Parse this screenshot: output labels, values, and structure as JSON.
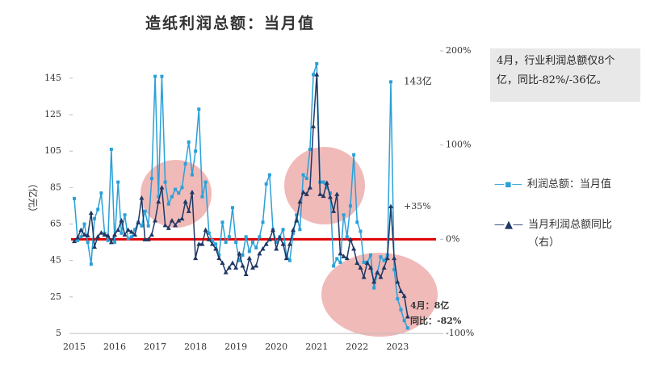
{
  "chart_data": {
    "type": "line",
    "title": "造纸利润总额：当月值",
    "y_label": "（亿元）",
    "categories": [
      "2015",
      null,
      null,
      null,
      null,
      null,
      null,
      null,
      null,
      null,
      null,
      null,
      "2016",
      null,
      null,
      null,
      null,
      null,
      null,
      null,
      null,
      null,
      null,
      null,
      "2017",
      null,
      null,
      null,
      null,
      null,
      null,
      null,
      null,
      null,
      null,
      null,
      "2018",
      null,
      null,
      null,
      null,
      null,
      null,
      null,
      null,
      null,
      null,
      null,
      "2019",
      null,
      null,
      null,
      null,
      null,
      null,
      null,
      null,
      null,
      null,
      null,
      "2020",
      null,
      null,
      null,
      null,
      null,
      null,
      null,
      null,
      null,
      null,
      null,
      "2021",
      null,
      null,
      null,
      null,
      null,
      null,
      null,
      null,
      null,
      null,
      null,
      "2022",
      null,
      null,
      null,
      null,
      null,
      null,
      null,
      null,
      null,
      null,
      null,
      "2023",
      null,
      null,
      null
    ],
    "series": [
      {
        "name": "利润总额：当月值",
        "color": "#2aa0d8",
        "marker": "square",
        "values": [
          79,
          56,
          58,
          65,
          55,
          43,
          68,
          73,
          82,
          60,
          56,
          106,
          55,
          88,
          60,
          70,
          57,
          58,
          62,
          66,
          64,
          72,
          64,
          90,
          146,
          80,
          146,
          88,
          76,
          80,
          84,
          82,
          85,
          98,
          110,
          92,
          105,
          128,
          80,
          88,
          60,
          56,
          54,
          48,
          66,
          55,
          58,
          74,
          55,
          45,
          48,
          58,
          50,
          55,
          52,
          58,
          66,
          87,
          92,
          62,
          55,
          58,
          62,
          48,
          45,
          60,
          70,
          62,
          92,
          90,
          106,
          147,
          153,
          88,
          88,
          85,
          82,
          42,
          46,
          44,
          70,
          58,
          75,
          103,
          66,
          61,
          44,
          44,
          48,
          30,
          38,
          47,
          45,
          48,
          143,
          40,
          24,
          18,
          12,
          8
        ]
      },
      {
        "name": "当月利润总额同比（右）",
        "color": "#1f3864",
        "marker": "triangle",
        "axis": "y2",
        "values": [
          -2,
          2,
          10,
          5,
          4,
          28,
          -8,
          3,
          7,
          5,
          4,
          -3,
          5,
          10,
          20,
          5,
          10,
          8,
          5,
          18,
          44,
          0,
          0,
          5,
          20,
          40,
          55,
          15,
          12,
          20,
          15,
          20,
          22,
          40,
          30,
          50,
          -20,
          -5,
          -5,
          10,
          0,
          -5,
          -10,
          -20,
          -25,
          -35,
          -30,
          -25,
          -30,
          -15,
          -28,
          -37,
          -20,
          -30,
          -28,
          -15,
          -10,
          -5,
          0,
          10,
          -10,
          2,
          -5,
          -20,
          -5,
          10,
          20,
          40,
          50,
          48,
          55,
          120,
          175,
          48,
          46,
          60,
          45,
          30,
          48,
          -15,
          -18,
          -20,
          0,
          -10,
          -25,
          -30,
          -40,
          -25,
          -30,
          -45,
          -35,
          -40,
          -30,
          -20,
          35,
          -20,
          -45,
          -55,
          -60,
          -82
        ]
      }
    ],
    "ylim": [
      5,
      160
    ],
    "yticks": [
      5,
      25,
      45,
      65,
      85,
      105,
      125,
      145
    ],
    "y2lim": [
      -100,
      200
    ],
    "y2ticks": [
      {
        "value": -100,
        "label": "-100%"
      },
      {
        "value": 0,
        "label": "0%"
      },
      {
        "value": 100,
        "label": "100%"
      },
      {
        "value": 200,
        "label": "200%"
      }
    ],
    "reference_line": {
      "axis": "y2",
      "value": 0,
      "color": "#e00000"
    },
    "annotations": [
      "143亿",
      "+35%",
      "4月：8亿",
      "同比：-82%"
    ],
    "note": "4月，行业利润总额仅8个亿，同比-82%/-36亿。"
  }
}
